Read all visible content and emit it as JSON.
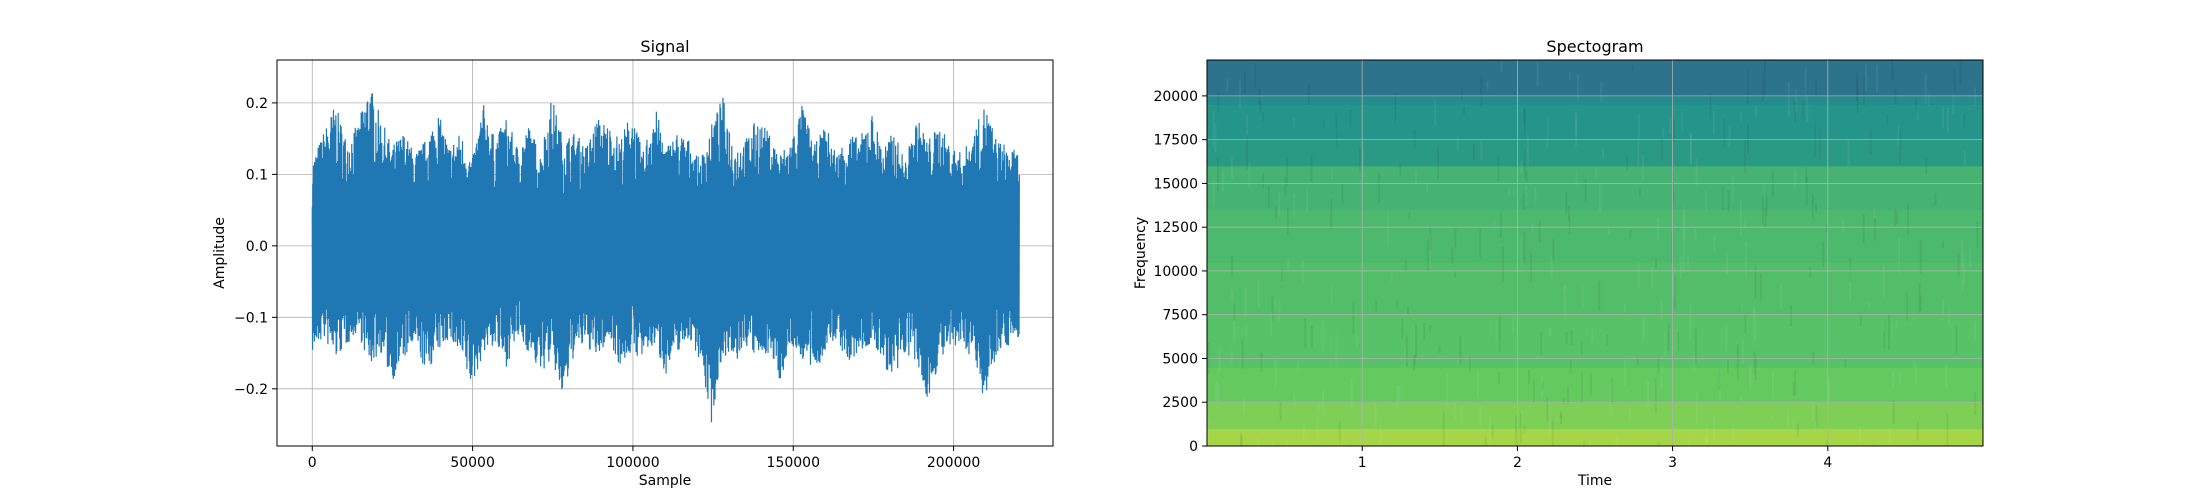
{
  "chart_data": [
    {
      "type": "line",
      "title": "Signal",
      "xlabel": "Sample",
      "ylabel": "Amplitude",
      "xlim": [
        -11000,
        231000
      ],
      "ylim": [
        -0.28,
        0.26
      ],
      "xticks": [
        0,
        50000,
        100000,
        150000,
        200000
      ],
      "xtick_labels": [
        "0",
        "50000",
        "100000",
        "150000",
        "200000"
      ],
      "yticks": [
        -0.2,
        -0.1,
        0.0,
        0.1,
        0.2
      ],
      "ytick_labels": [
        "−0.2",
        "−0.1",
        "0.0",
        "0.1",
        "0.2"
      ],
      "grid": true,
      "series": [
        {
          "color": "#1f77b4",
          "x_range": [
            0,
            220500
          ],
          "envelope_upper": [
            0.12,
            0.16,
            0.2,
            0.15,
            0.17,
            0.23,
            0.18,
            0.14,
            0.16,
            0.13,
            0.15,
            0.19,
            0.14,
            0.16,
            0.12,
            0.2,
            0.15,
            0.18,
            0.14,
            0.17,
            0.13,
            0.21,
            0.15,
            0.16,
            0.14,
            0.18,
            0.17,
            0.15,
            0.19,
            0.13,
            0.2,
            0.14,
            0.16,
            0.15,
            0.12,
            0.17,
            0.21,
            0.14,
            0.15,
            0.18,
            0.16,
            0.13,
            0.15,
            0.2,
            0.14,
            0.17,
            0.13,
            0.16,
            0.15,
            0.19,
            0.14,
            0.16,
            0.12,
            0.18,
            0.15,
            0.17,
            0.14,
            0.13,
            0.16,
            0.2,
            0.15,
            0.14,
            0.13
          ],
          "envelope_lower": [
            -0.15,
            -0.13,
            -0.16,
            -0.14,
            -0.12,
            -0.17,
            -0.15,
            -0.19,
            -0.16,
            -0.14,
            -0.18,
            -0.15,
            -0.13,
            -0.16,
            -0.2,
            -0.15,
            -0.14,
            -0.17,
            -0.13,
            -0.15,
            -0.18,
            -0.16,
            -0.22,
            -0.15,
            -0.14,
            -0.16,
            -0.13,
            -0.17,
            -0.15,
            -0.16,
            -0.14,
            -0.18,
            -0.15,
            -0.13,
            -0.16,
            -0.25,
            -0.15,
            -0.17,
            -0.14,
            -0.16,
            -0.15,
            -0.19,
            -0.14,
            -0.16,
            -0.18,
            -0.15,
            -0.13,
            -0.17,
            -0.15,
            -0.14,
            -0.16,
            -0.2,
            -0.15,
            -0.17,
            -0.22,
            -0.16,
            -0.15,
            -0.14,
            -0.16,
            -0.22,
            -0.15,
            -0.14,
            -0.13
          ]
        }
      ]
    },
    {
      "type": "heatmap",
      "title": "Spectogram",
      "xlabel": "Time",
      "ylabel": "Frequency",
      "xlim": [
        0,
        5
      ],
      "ylim": [
        0,
        22050
      ],
      "xticks": [
        1,
        2,
        3,
        4
      ],
      "xtick_labels": [
        "1",
        "2",
        "3",
        "4"
      ],
      "yticks": [
        0,
        2500,
        5000,
        7500,
        10000,
        12500,
        15000,
        17500,
        20000
      ],
      "ytick_labels": [
        "0",
        "2500",
        "5000",
        "7500",
        "10000",
        "12500",
        "15000",
        "17500",
        "20000"
      ],
      "grid": true,
      "colormap": "viridis",
      "frequency_bands": [
        {
          "from": 0,
          "to": 1000,
          "level": 0.86
        },
        {
          "from": 1000,
          "to": 2500,
          "level": 0.8
        },
        {
          "from": 2500,
          "to": 4500,
          "level": 0.76
        },
        {
          "from": 4500,
          "to": 7500,
          "level": 0.72
        },
        {
          "from": 7500,
          "to": 10500,
          "level": 0.7
        },
        {
          "from": 10500,
          "to": 13500,
          "level": 0.68
        },
        {
          "from": 13500,
          "to": 16000,
          "level": 0.65
        },
        {
          "from": 16000,
          "to": 17500,
          "level": 0.54
        },
        {
          "from": 17500,
          "to": 19500,
          "level": 0.52
        },
        {
          "from": 19500,
          "to": 20000,
          "level": 0.48
        },
        {
          "from": 20000,
          "to": 22050,
          "level": 0.38
        }
      ]
    }
  ]
}
